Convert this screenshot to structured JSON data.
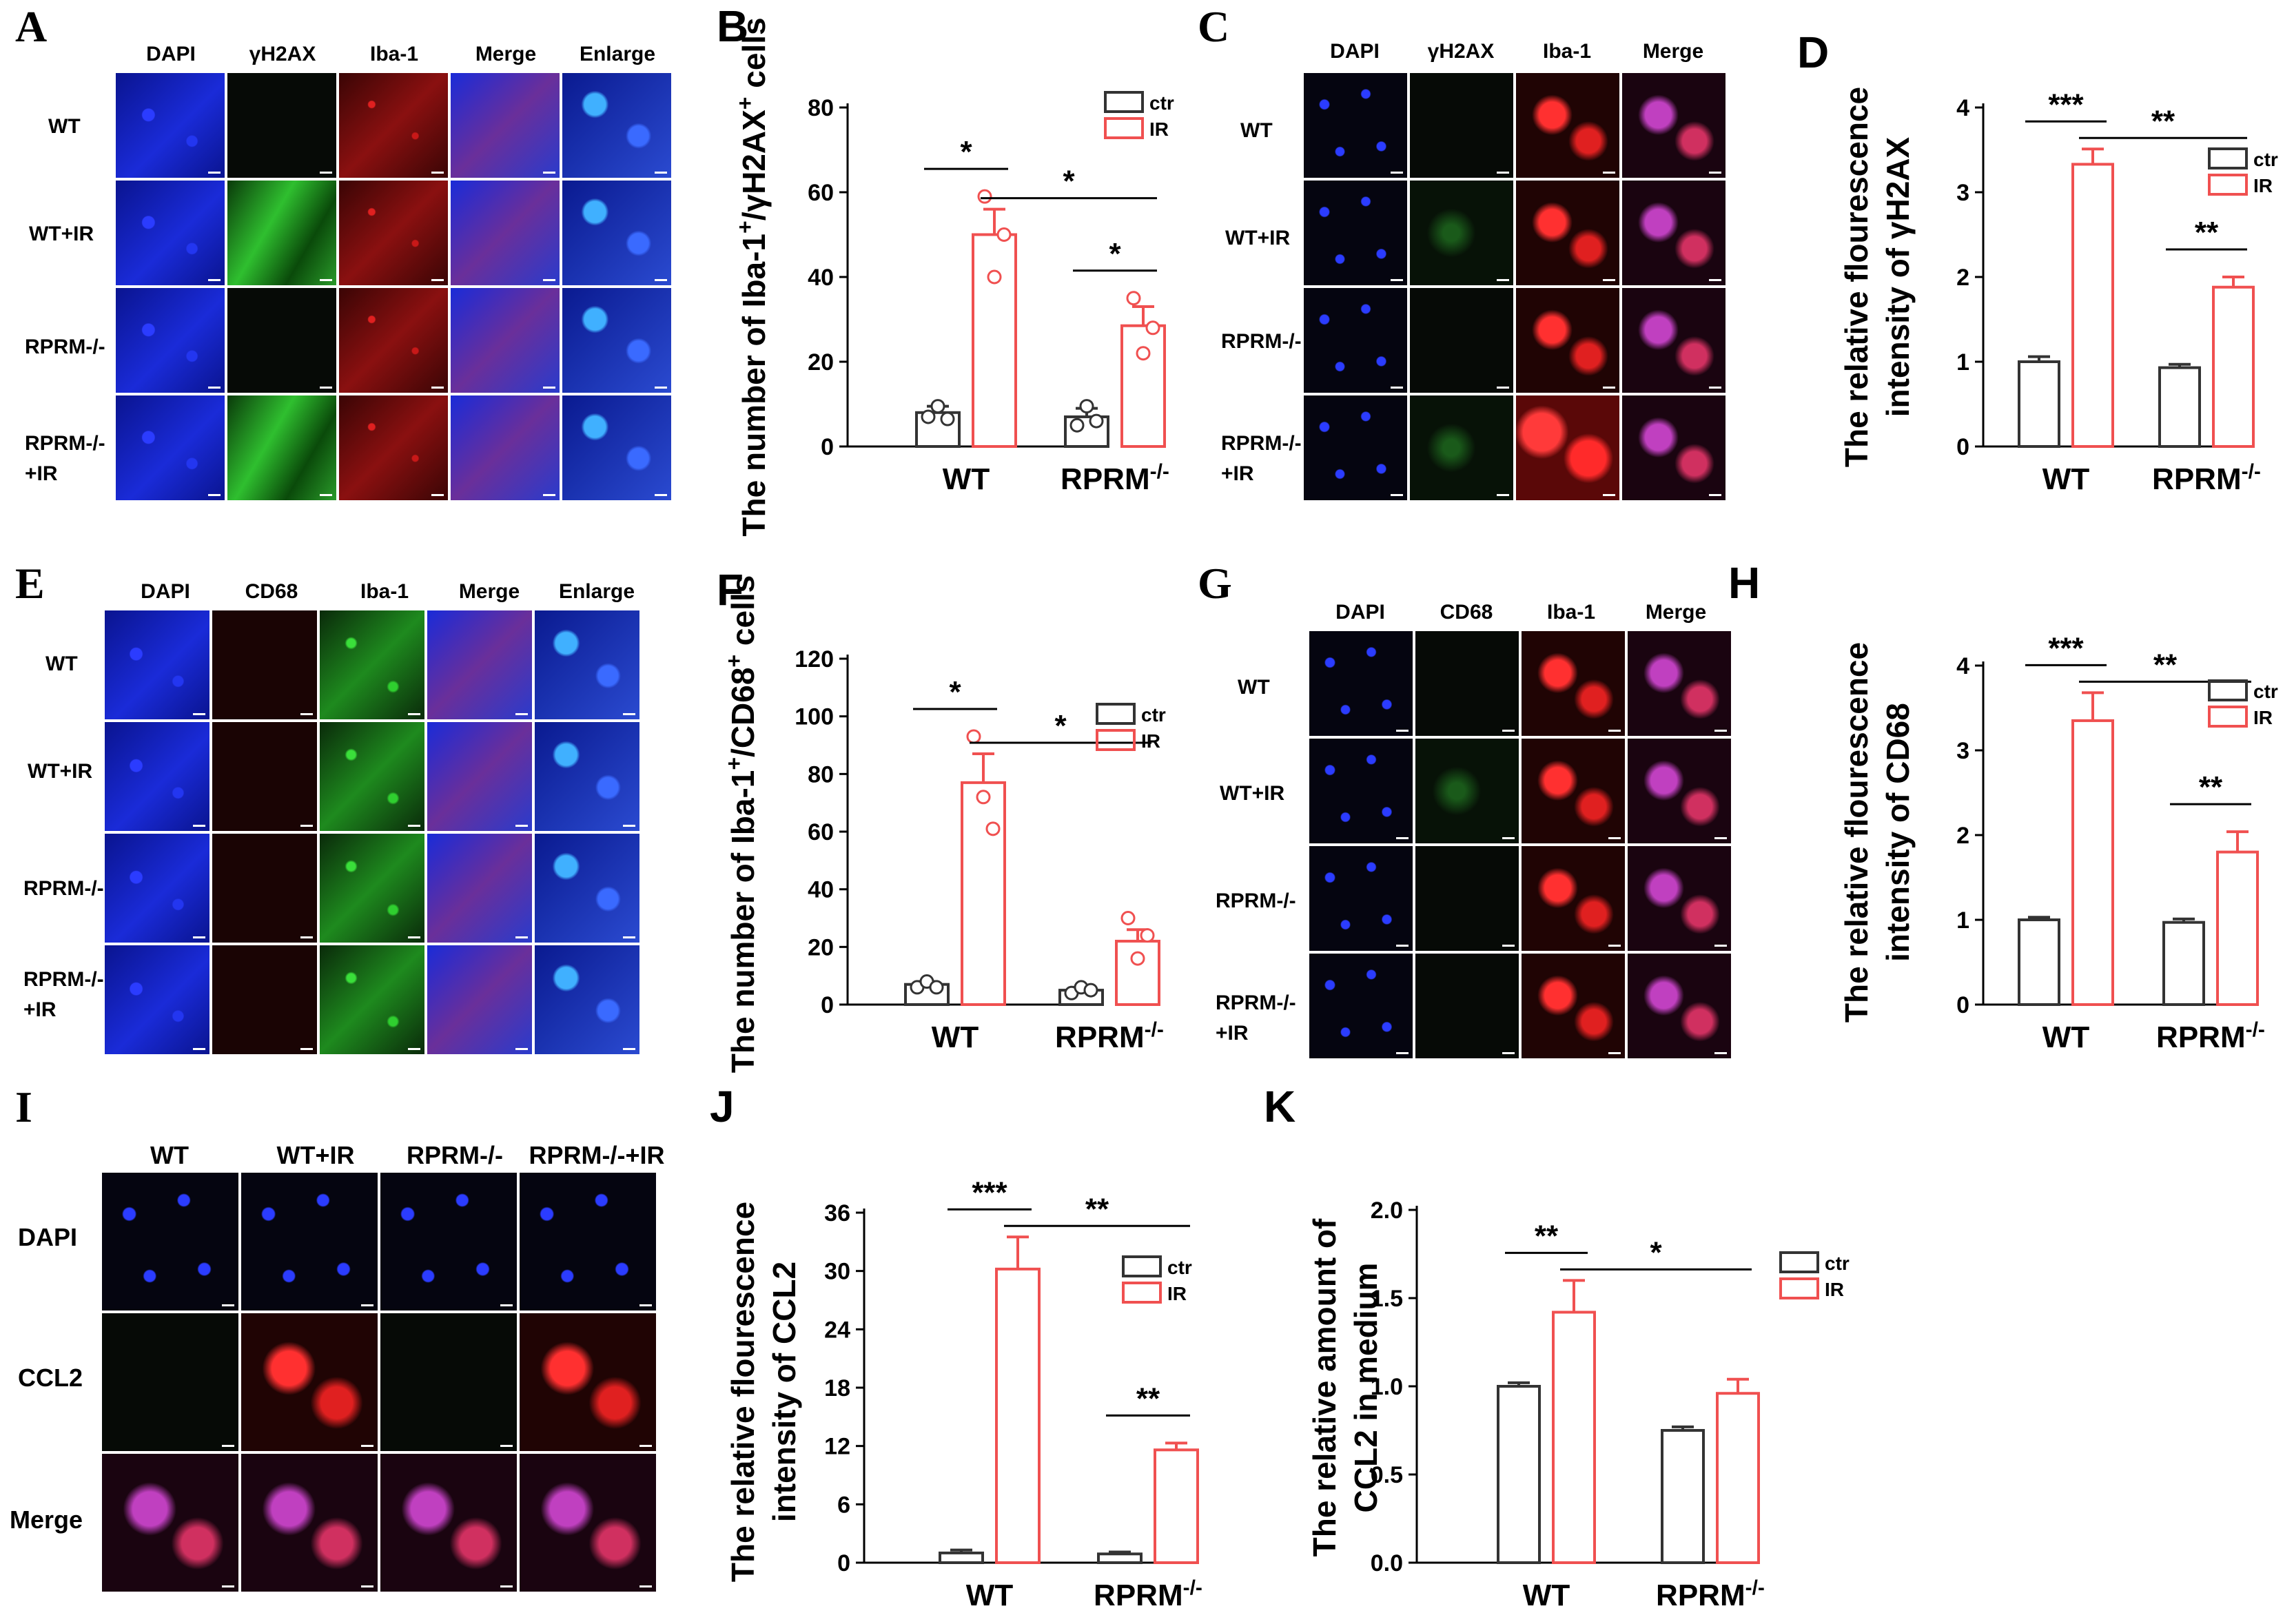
{
  "colors": {
    "ctr": "#333333",
    "ir": "#f05050",
    "dapi": "#1a2bd8",
    "iba1_red": "#d21818",
    "iba1_green": "#22b022",
    "gh2ax": "#2fa02f",
    "merge": "#6a2f9a"
  },
  "panels": {
    "A": {
      "letter": "A",
      "cols": [
        "DAPI",
        "γH2AX",
        "Iba-1",
        "Merge",
        "Enlarge"
      ],
      "rows": [
        "WT",
        "WT+IR",
        "RPRM-/-",
        "RPRM-/-\n+IR"
      ]
    },
    "C": {
      "letter": "C",
      "cols": [
        "DAPI",
        "γH2AX",
        "Iba-1",
        "Merge"
      ],
      "rows": [
        "WT",
        "WT+IR",
        "RPRM-/-",
        "RPRM-/-\n+IR"
      ]
    },
    "E": {
      "letter": "E",
      "cols": [
        "DAPI",
        "CD68",
        "Iba-1",
        "Merge",
        "Enlarge"
      ],
      "rows": [
        "WT",
        "WT+IR",
        "RPRM-/-",
        "RPRM-/-\n+IR"
      ]
    },
    "G": {
      "letter": "G",
      "cols": [
        "DAPI",
        "CD68",
        "Iba-1",
        "Merge"
      ],
      "rows": [
        "WT",
        "WT+IR",
        "RPRM-/-",
        "RPRM-/-\n+IR"
      ]
    },
    "I": {
      "letter": "I",
      "cols": [
        "WT",
        "WT+IR",
        "RPRM-/-",
        "RPRM-/-+IR"
      ],
      "rows": [
        "DAPI",
        "CCL2",
        "Merge"
      ]
    }
  },
  "chart_data": [
    {
      "panel": "B",
      "type": "bar",
      "categories": [
        "WT",
        "RPRM-/-"
      ],
      "ylabel": "The number of Iba-1+/γH2AX+ cells",
      "ylim": [
        0,
        80
      ],
      "yticks": [
        0,
        20,
        40,
        60,
        80
      ],
      "series": [
        {
          "name": "ctr",
          "values": [
            8,
            7
          ],
          "errors": [
            1.5,
            2
          ],
          "points": [
            [
              7,
              9.5,
              6.5
            ],
            [
              5,
              9.5,
              6
            ]
          ]
        },
        {
          "name": "IR",
          "values": [
            50,
            28.5
          ],
          "errors": [
            6,
            4.5
          ],
          "points": [
            [
              59,
              40,
              50
            ],
            [
              35,
              22,
              28
            ]
          ]
        }
      ],
      "legend": "top-right",
      "significance": [
        {
          "label": "*",
          "between": [
            "WT ctr",
            "WT IR"
          ]
        },
        {
          "label": "*",
          "between": [
            "WT IR",
            "RPRM-/- IR"
          ]
        },
        {
          "label": "*",
          "between": [
            "RPRM-/- ctr",
            "RPRM-/- IR"
          ]
        }
      ]
    },
    {
      "panel": "D",
      "type": "bar",
      "categories": [
        "WT",
        "RPRM-/-"
      ],
      "ylabel": "The relative flourescence intensity of γH2AX",
      "ylim": [
        0,
        4
      ],
      "yticks": [
        0,
        1,
        2,
        3,
        4
      ],
      "series": [
        {
          "name": "ctr",
          "values": [
            1.0,
            0.93
          ],
          "errors": [
            0.06,
            0.04
          ]
        },
        {
          "name": "IR",
          "values": [
            3.33,
            1.88
          ],
          "errors": [
            0.18,
            0.12
          ]
        }
      ],
      "legend": "top-right",
      "significance": [
        {
          "label": "***",
          "between": [
            "WT ctr",
            "WT IR"
          ]
        },
        {
          "label": "**",
          "between": [
            "WT IR",
            "RPRM-/- IR"
          ]
        },
        {
          "label": "**",
          "between": [
            "RPRM-/- ctr",
            "RPRM-/- IR"
          ]
        }
      ]
    },
    {
      "panel": "F",
      "type": "bar",
      "categories": [
        "WT",
        "RPRM-/-"
      ],
      "ylabel": "The number of Iba-1+/CD68+ cells",
      "ylim": [
        0,
        120
      ],
      "yticks": [
        0,
        20,
        40,
        60,
        80,
        100,
        120
      ],
      "series": [
        {
          "name": "ctr",
          "values": [
            7,
            5
          ],
          "errors": [
            1,
            1
          ],
          "points": [
            [
              6,
              8,
              6
            ],
            [
              4,
              6,
              5
            ]
          ]
        },
        {
          "name": "IR",
          "values": [
            77,
            22
          ],
          "errors": [
            10,
            4
          ],
          "points": [
            [
              93,
              72,
              61
            ],
            [
              30,
              16,
              24
            ]
          ]
        }
      ],
      "legend": "top-right",
      "significance": [
        {
          "label": "*",
          "between": [
            "WT ctr",
            "WT IR"
          ]
        },
        {
          "label": "*",
          "between": [
            "WT IR",
            "RPRM-/- IR"
          ]
        }
      ]
    },
    {
      "panel": "H",
      "type": "bar",
      "categories": [
        "WT",
        "RPRM-/-"
      ],
      "ylabel": "The relative flourescence intensity of CD68",
      "ylim": [
        0,
        4
      ],
      "yticks": [
        0,
        1,
        2,
        3,
        4
      ],
      "series": [
        {
          "name": "ctr",
          "values": [
            1.0,
            0.97
          ],
          "errors": [
            0.03,
            0.04
          ]
        },
        {
          "name": "IR",
          "values": [
            3.35,
            1.8
          ],
          "errors": [
            0.33,
            0.24
          ]
        }
      ],
      "legend": "top-right",
      "significance": [
        {
          "label": "***",
          "between": [
            "WT ctr",
            "WT IR"
          ]
        },
        {
          "label": "**",
          "between": [
            "WT IR",
            "RPRM-/- IR"
          ]
        },
        {
          "label": "**",
          "between": [
            "RPRM-/- ctr",
            "RPRM-/- IR"
          ]
        }
      ]
    },
    {
      "panel": "J",
      "type": "bar",
      "categories": [
        "WT",
        "RPRM-/-"
      ],
      "ylabel": "The relative flourescence intensity of CCL2",
      "ylim": [
        0,
        36
      ],
      "yticks": [
        0,
        6,
        12,
        18,
        24,
        30,
        36
      ],
      "series": [
        {
          "name": "ctr",
          "values": [
            1.0,
            0.9
          ],
          "errors": [
            0.3,
            0.2
          ]
        },
        {
          "name": "IR",
          "values": [
            30.2,
            11.6
          ],
          "errors": [
            3.3,
            0.7
          ]
        }
      ],
      "legend": "top-right",
      "significance": [
        {
          "label": "***",
          "between": [
            "WT ctr",
            "WT IR"
          ]
        },
        {
          "label": "**",
          "between": [
            "WT IR",
            "RPRM-/- IR"
          ]
        },
        {
          "label": "**",
          "between": [
            "RPRM-/- ctr",
            "RPRM-/- IR"
          ]
        }
      ]
    },
    {
      "panel": "K",
      "type": "bar",
      "categories": [
        "WT",
        "RPRM-/-"
      ],
      "ylabel": "The relative amount of CCL2 in medium",
      "ylim": [
        0,
        2.0
      ],
      "yticks": [
        0.0,
        0.5,
        1.0,
        1.5,
        2.0
      ],
      "series": [
        {
          "name": "ctr",
          "values": [
            1.0,
            0.75
          ],
          "errors": [
            0.02,
            0.02
          ]
        },
        {
          "name": "IR",
          "values": [
            1.42,
            0.96
          ],
          "errors": [
            0.18,
            0.08
          ]
        }
      ],
      "legend": "top-right",
      "significance": [
        {
          "label": "**",
          "between": [
            "WT ctr",
            "WT IR"
          ]
        },
        {
          "label": "*",
          "between": [
            "WT IR",
            "RPRM-/- IR"
          ]
        }
      ]
    }
  ]
}
